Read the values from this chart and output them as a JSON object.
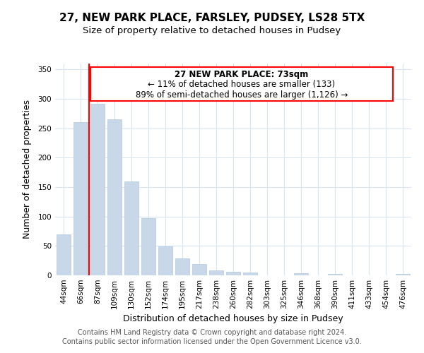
{
  "title": "27, NEW PARK PLACE, FARSLEY, PUDSEY, LS28 5TX",
  "subtitle": "Size of property relative to detached houses in Pudsey",
  "xlabel": "Distribution of detached houses by size in Pudsey",
  "ylabel": "Number of detached properties",
  "bar_color": "#c8d8e8",
  "bar_edge_color": "#b0c8e0",
  "categories": [
    "44sqm",
    "66sqm",
    "87sqm",
    "109sqm",
    "130sqm",
    "152sqm",
    "174sqm",
    "195sqm",
    "217sqm",
    "238sqm",
    "260sqm",
    "282sqm",
    "303sqm",
    "325sqm",
    "346sqm",
    "368sqm",
    "390sqm",
    "411sqm",
    "433sqm",
    "454sqm",
    "476sqm"
  ],
  "values": [
    70,
    260,
    292,
    265,
    160,
    97,
    49,
    29,
    19,
    9,
    6,
    5,
    0,
    0,
    4,
    0,
    2,
    0,
    0,
    0,
    2
  ],
  "ylim": [
    0,
    360
  ],
  "yticks": [
    0,
    50,
    100,
    150,
    200,
    250,
    300,
    350
  ],
  "red_line_x": 1.5,
  "ann_label": "27 NEW PARK PLACE: 73sqm",
  "ann_line2": "← 11% of detached houses are smaller (133)",
  "ann_line3": "89% of semi-detached houses are larger (1,126) →",
  "footnote1": "Contains HM Land Registry data © Crown copyright and database right 2024.",
  "footnote2": "Contains public sector information licensed under the Open Government Licence v3.0.",
  "background_color": "#ffffff",
  "grid_color": "#d8e4f0",
  "title_fontsize": 11,
  "subtitle_fontsize": 9.5,
  "axis_label_fontsize": 9,
  "tick_fontsize": 7.5,
  "annotation_fontsize": 8.5,
  "footnote_fontsize": 7
}
